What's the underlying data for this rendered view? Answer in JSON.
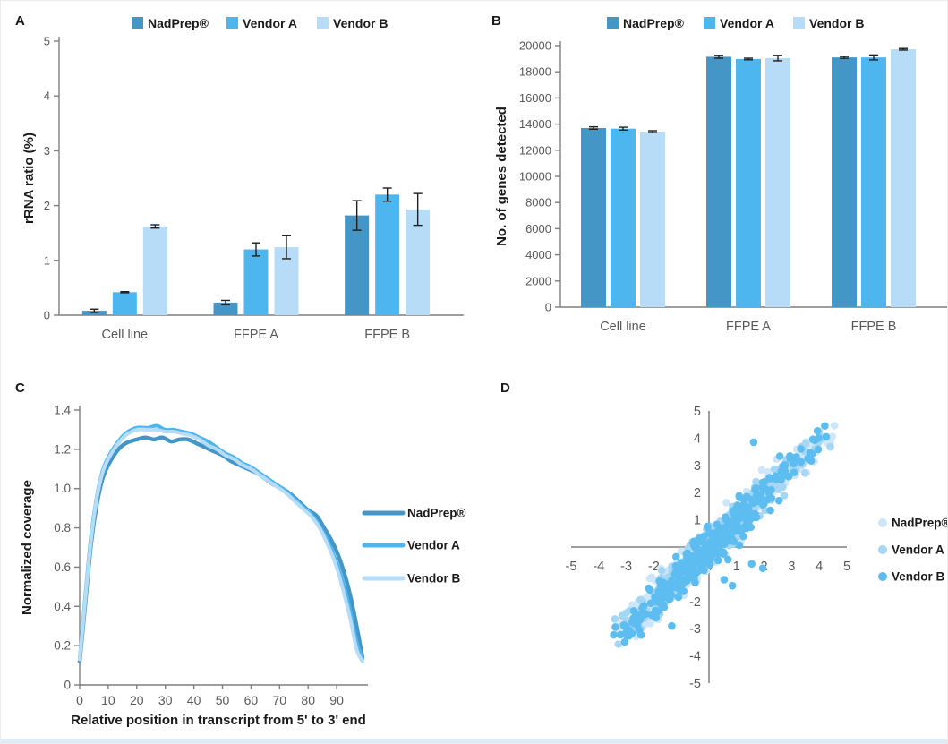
{
  "panels": [
    {
      "label": "A"
    },
    {
      "label": "B"
    },
    {
      "label": "C"
    },
    {
      "label": "D"
    }
  ],
  "colors": {
    "nadprep": "#4496c7",
    "vendor_a": "#4db6ef",
    "vendor_b": "#b6dcf7",
    "scatter_nadprep": "#cde6f9",
    "scatter_vendor_a": "#a5d6f4",
    "scatter_vendor_b": "#5ebdf0",
    "axis": "#7f7f7f",
    "tick_text": "#595959",
    "title_text": "#1a1a1a",
    "error_bar": "#1f1f1f",
    "footer_strip": "#ddebf7"
  },
  "chart_data": [
    {
      "type": "bar",
      "panel": "A",
      "ylabel": "rRNA ratio (%)",
      "categories": [
        "Cell line",
        "FFPE A",
        "FFPE B"
      ],
      "series": [
        {
          "name": "NadPrep®",
          "color_key": "nadprep",
          "values": [
            0.08,
            0.23,
            1.82
          ],
          "errors": [
            0.03,
            0.04,
            0.27
          ]
        },
        {
          "name": "Vendor A",
          "color_key": "vendor_a",
          "values": [
            0.42,
            1.2,
            2.2
          ],
          "errors": [
            0.01,
            0.12,
            0.12
          ]
        },
        {
          "name": "Vendor B",
          "color_key": "vendor_b",
          "values": [
            1.62,
            1.24,
            1.93
          ],
          "errors": [
            0.03,
            0.21,
            0.29
          ]
        }
      ],
      "ylim": [
        0,
        5
      ],
      "yticks": [
        0,
        1,
        2,
        3,
        4,
        5
      ],
      "grid": false,
      "legend_position": "top"
    },
    {
      "type": "bar",
      "panel": "B",
      "ylabel": "No. of genes detected",
      "categories": [
        "Cell line",
        "FFPE A",
        "FFPE B"
      ],
      "series": [
        {
          "name": "NadPrep®",
          "color_key": "nadprep",
          "values": [
            13700,
            19150,
            19100
          ],
          "errors": [
            90,
            110,
            70
          ]
        },
        {
          "name": "Vendor A",
          "color_key": "vendor_a",
          "values": [
            13650,
            18980,
            19100
          ],
          "errors": [
            110,
            60,
            190
          ]
        },
        {
          "name": "Vendor B",
          "color_key": "vendor_b",
          "values": [
            13420,
            19050,
            19720
          ],
          "errors": [
            70,
            210,
            60
          ]
        }
      ],
      "ylim": [
        0,
        20000
      ],
      "yticks": [
        0,
        2000,
        4000,
        6000,
        8000,
        10000,
        12000,
        14000,
        16000,
        18000,
        20000
      ],
      "grid": false,
      "legend_position": "top"
    },
    {
      "type": "line",
      "panel": "C",
      "xlabel": "Relative position in transcript from 5' to 3' end",
      "ylabel": "Normalized coverage",
      "xlim": [
        0,
        99
      ],
      "ylim": [
        0,
        1.4
      ],
      "xticks": [
        0,
        10,
        20,
        30,
        40,
        50,
        60,
        70,
        80,
        90
      ],
      "ytick_labels": [
        "0",
        "0.2",
        "0.4",
        "0.6",
        "0.8",
        "1.0",
        "1.2",
        "1.4"
      ],
      "yticks": [
        0,
        0.2,
        0.4,
        0.6,
        0.8,
        1.0,
        1.2,
        1.4
      ],
      "grid": false,
      "legend_position": "right",
      "series": [
        {
          "name": "NadPrep®",
          "color_key": "nadprep",
          "width": 4.5,
          "points": [
            [
              0,
              0.12
            ],
            [
              2,
              0.42
            ],
            [
              4,
              0.72
            ],
            [
              6,
              0.92
            ],
            [
              8,
              1.05
            ],
            [
              10,
              1.12
            ],
            [
              13,
              1.19
            ],
            [
              16,
              1.23
            ],
            [
              20,
              1.25
            ],
            [
              23,
              1.26
            ],
            [
              26,
              1.25
            ],
            [
              29,
              1.26
            ],
            [
              32,
              1.24
            ],
            [
              35,
              1.25
            ],
            [
              38,
              1.25
            ],
            [
              41,
              1.23
            ],
            [
              44,
              1.21
            ],
            [
              47,
              1.19
            ],
            [
              50,
              1.17
            ],
            [
              53,
              1.14
            ],
            [
              56,
              1.12
            ],
            [
              59,
              1.1
            ],
            [
              62,
              1.08
            ],
            [
              65,
              1.05
            ],
            [
              68,
              1.02
            ],
            [
              71,
              1.0
            ],
            [
              74,
              0.97
            ],
            [
              77,
              0.93
            ],
            [
              80,
              0.89
            ],
            [
              83,
              0.86
            ],
            [
              86,
              0.79
            ],
            [
              88,
              0.74
            ],
            [
              90,
              0.68
            ],
            [
              92,
              0.6
            ],
            [
              94,
              0.5
            ],
            [
              96,
              0.37
            ],
            [
              98,
              0.22
            ],
            [
              99,
              0.14
            ]
          ]
        },
        {
          "name": "Vendor A",
          "color_key": "vendor_a",
          "width": 4,
          "points": [
            [
              0,
              0.13
            ],
            [
              2,
              0.46
            ],
            [
              4,
              0.76
            ],
            [
              6,
              0.96
            ],
            [
              8,
              1.09
            ],
            [
              10,
              1.16
            ],
            [
              13,
              1.23
            ],
            [
              16,
              1.28
            ],
            [
              20,
              1.31
            ],
            [
              24,
              1.31
            ],
            [
              27,
              1.32
            ],
            [
              30,
              1.3
            ],
            [
              33,
              1.3
            ],
            [
              36,
              1.29
            ],
            [
              39,
              1.28
            ],
            [
              42,
              1.26
            ],
            [
              45,
              1.24
            ],
            [
              48,
              1.21
            ],
            [
              51,
              1.18
            ],
            [
              54,
              1.16
            ],
            [
              57,
              1.13
            ],
            [
              60,
              1.11
            ],
            [
              63,
              1.08
            ],
            [
              66,
              1.05
            ],
            [
              69,
              1.02
            ],
            [
              72,
              0.99
            ],
            [
              75,
              0.95
            ],
            [
              78,
              0.91
            ],
            [
              81,
              0.87
            ],
            [
              84,
              0.81
            ],
            [
              87,
              0.73
            ],
            [
              89,
              0.66
            ],
            [
              91,
              0.58
            ],
            [
              93,
              0.48
            ],
            [
              95,
              0.36
            ],
            [
              97,
              0.22
            ],
            [
              99,
              0.13
            ]
          ]
        },
        {
          "name": "Vendor B",
          "color_key": "vendor_b",
          "width": 4,
          "points": [
            [
              0,
              0.13
            ],
            [
              2,
              0.44
            ],
            [
              4,
              0.74
            ],
            [
              6,
              0.95
            ],
            [
              8,
              1.08
            ],
            [
              10,
              1.15
            ],
            [
              13,
              1.22
            ],
            [
              16,
              1.27
            ],
            [
              20,
              1.3
            ],
            [
              24,
              1.3
            ],
            [
              27,
              1.3
            ],
            [
              30,
              1.29
            ],
            [
              33,
              1.29
            ],
            [
              36,
              1.28
            ],
            [
              39,
              1.27
            ],
            [
              42,
              1.25
            ],
            [
              45,
              1.22
            ],
            [
              48,
              1.2
            ],
            [
              51,
              1.17
            ],
            [
              54,
              1.15
            ],
            [
              57,
              1.12
            ],
            [
              60,
              1.1
            ],
            [
              63,
              1.07
            ],
            [
              66,
              1.04
            ],
            [
              69,
              1.01
            ],
            [
              72,
              0.98
            ],
            [
              75,
              0.94
            ],
            [
              78,
              0.9
            ],
            [
              81,
              0.86
            ],
            [
              84,
              0.8
            ],
            [
              87,
              0.71
            ],
            [
              89,
              0.64
            ],
            [
              91,
              0.55
            ],
            [
              93,
              0.44
            ],
            [
              95,
              0.32
            ],
            [
              97,
              0.18
            ],
            [
              99,
              0.12
            ]
          ]
        }
      ]
    },
    {
      "type": "scatter",
      "panel": "D",
      "xlim": [
        -5,
        5
      ],
      "ylim": [
        -5,
        5
      ],
      "xticks": [
        -5,
        -4,
        -3,
        -2,
        -1,
        0,
        1,
        2,
        3,
        4,
        5
      ],
      "yticks": [
        5,
        4,
        3,
        2,
        1,
        0,
        -1,
        -2,
        -3,
        -4,
        -5
      ],
      "grid": false,
      "legend_position": "right",
      "axes_style": "cross-at-origin",
      "series": [
        {
          "name": "NadPrep®",
          "color_key": "scatter_nadprep"
        },
        {
          "name": "Vendor A",
          "color_key": "scatter_vendor_a"
        },
        {
          "name": "Vendor B",
          "color_key": "scatter_vendor_b"
        }
      ],
      "cloud_spec": {
        "n_per_series": 380,
        "diag_mean": -0.25,
        "diag_sd": 1.3,
        "arm_prob": 0.08,
        "arm_range": [
          1.8,
          4.3
        ],
        "perp_noise_sd": 0.25,
        "t_clamp": [
          -3.15,
          4.3
        ],
        "seed": 7,
        "description": "correlated diagonal cloud y ~ x from (-3,-3) to (4.3,4.4)"
      },
      "outliers": [
        [
          1.62,
          3.85
        ],
        [
          1.55,
          -0.62
        ],
        [
          1.95,
          -0.78
        ],
        [
          0.55,
          -1.2
        ],
        [
          0.85,
          -1.42
        ],
        [
          -1.35,
          -2.9
        ],
        [
          4.2,
          4.45
        ],
        [
          4.25,
          4.05
        ]
      ]
    }
  ]
}
